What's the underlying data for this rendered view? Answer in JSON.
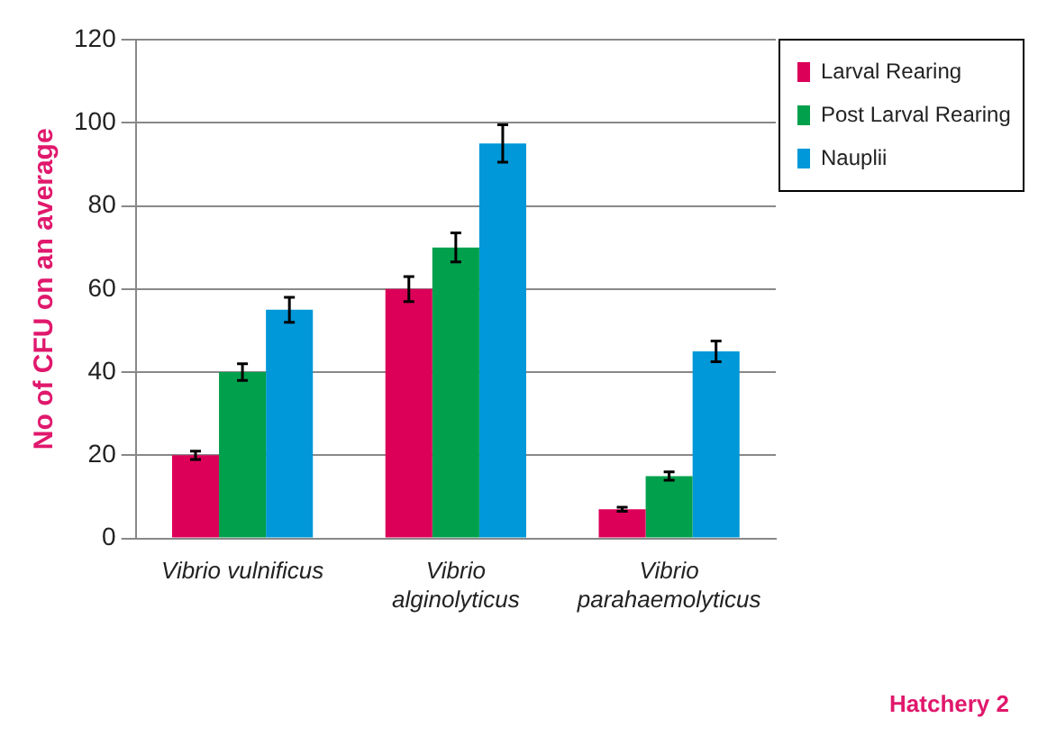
{
  "chart_data": {
    "type": "bar",
    "ylabel": "No of CFU on an average",
    "categories": [
      "Vibrio vulnificus",
      "Vibrio alginolyticus",
      "Vibrio parahaemolyticus"
    ],
    "series": [
      {
        "name": "Larval Rearing",
        "color": "#dc0059",
        "values": [
          20,
          60,
          7
        ],
        "errors": [
          1,
          3,
          0.5
        ]
      },
      {
        "name": "Post Larval Rearing",
        "color": "#00a04c",
        "values": [
          40,
          70,
          15
        ],
        "errors": [
          2,
          3.5,
          1
        ]
      },
      {
        "name": "Nauplii",
        "color": "#0098d8",
        "values": [
          55,
          95,
          45
        ],
        "errors": [
          3,
          4.5,
          2.5
        ]
      }
    ],
    "ylim": [
      0,
      120
    ],
    "yticks": [
      0,
      20,
      40,
      60,
      80,
      100,
      120
    ],
    "grid": "y",
    "legend": "top right",
    "annotations": [
      "Hatchery 2"
    ]
  }
}
